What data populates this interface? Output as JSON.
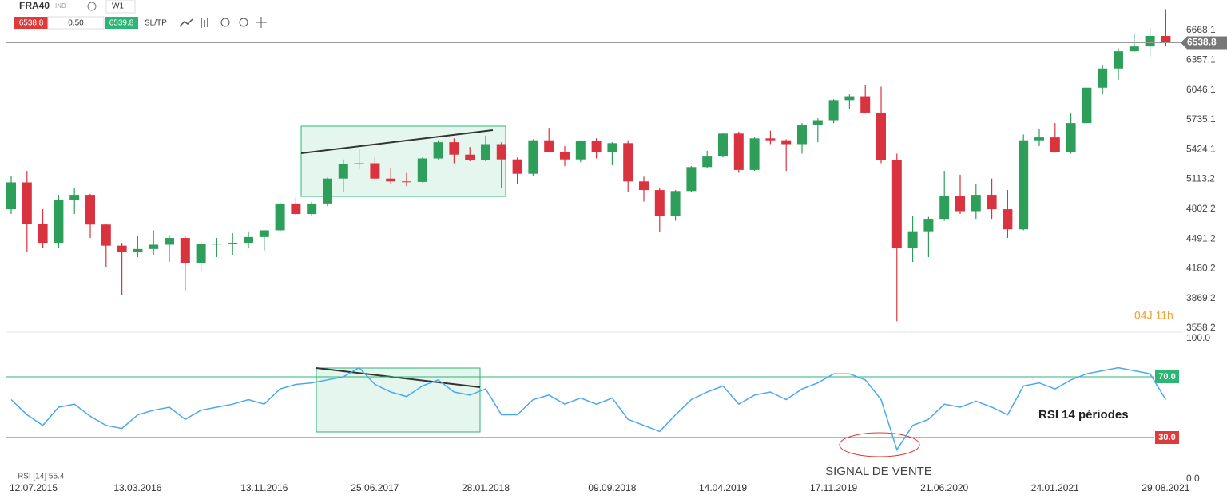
{
  "header": {
    "symbol": "FRA40",
    "kind": "IND",
    "timeframe": "W1",
    "sell": "6538.8",
    "volume": "0.50",
    "buy": "6539.8",
    "sltp": "SL/TP"
  },
  "chart_data": [
    {
      "type": "candlestick",
      "up_color": "#2e9e5b",
      "down_color": "#d9333f",
      "categories": [
        "12.07.2015",
        null,
        null,
        null,
        null,
        null,
        null,
        null,
        "13.03.2016",
        null,
        null,
        null,
        null,
        null,
        null,
        null,
        "13.11.2016",
        null,
        null,
        null,
        null,
        null,
        null,
        "25.06.2017",
        null,
        null,
        null,
        null,
        null,
        null,
        "28.01.2018",
        null,
        null,
        null,
        null,
        null,
        null,
        null,
        "09.09.2018",
        null,
        null,
        null,
        null,
        null,
        null,
        "14.04.2019",
        null,
        null,
        null,
        null,
        null,
        null,
        "17.11.2019",
        null,
        null,
        null,
        null,
        null,
        null,
        "21.06.2020",
        null,
        null,
        null,
        null,
        null,
        null,
        "24.01.2021",
        null,
        null,
        null,
        null,
        null,
        null,
        "29.08.2021"
      ],
      "open": [
        4800,
        5080,
        4650,
        4450,
        4900,
        4950,
        4640,
        4420,
        4350,
        4385,
        4430,
        4500,
        4240,
        4440,
        4440,
        4450,
        4510,
        4580,
        4860,
        4750,
        4860,
        5120,
        5270,
        5280,
        5120,
        5090,
        5085,
        5330,
        5500,
        5370,
        5310,
        5480,
        5320,
        5170,
        5520,
        5400,
        5320,
        5510,
        5400,
        5490,
        5090,
        5000,
        4730,
        4990,
        5240,
        5350,
        5590,
        5210,
        5540,
        5520,
        5480,
        5680,
        5730,
        5940,
        5980,
        5810,
        5310,
        4400,
        4570,
        4700,
        4940,
        4780,
        4950,
        4800,
        4590,
        5520,
        5550,
        5400,
        5700,
        6070,
        6270,
        6450,
        6500,
        6610
      ],
      "high": [
        5150,
        5200,
        4800,
        4950,
        5020,
        4960,
        4650,
        4450,
        4520,
        4580,
        4530,
        4520,
        4460,
        4500,
        4550,
        4570,
        4580,
        4870,
        4920,
        4880,
        5130,
        5320,
        5430,
        5340,
        5230,
        5180,
        5340,
        5520,
        5540,
        5450,
        5570,
        5500,
        5340,
        5530,
        5650,
        5460,
        5520,
        5540,
        5500,
        5520,
        5140,
        5020,
        5000,
        5250,
        5410,
        5600,
        5610,
        5550,
        5620,
        5530,
        5700,
        5750,
        5950,
        6000,
        6100,
        6080,
        5380,
        4730,
        4720,
        5200,
        5160,
        5060,
        5120,
        5000,
        5580,
        5640,
        5700,
        5800,
        6070,
        6300,
        6480,
        6640,
        6690,
        6890
      ],
      "low": [
        4750,
        4350,
        4400,
        4400,
        4750,
        4500,
        4200,
        3900,
        4300,
        4320,
        4250,
        3950,
        4150,
        4300,
        4320,
        4400,
        4370,
        4560,
        4740,
        4730,
        4830,
        4980,
        5220,
        5100,
        5060,
        5040,
        5080,
        5320,
        5280,
        5300,
        5300,
        5020,
        5060,
        5150,
        5400,
        5250,
        5290,
        5330,
        5260,
        4980,
        4880,
        4560,
        4680,
        4980,
        5230,
        5340,
        5180,
        5200,
        5480,
        5200,
        5380,
        5500,
        5700,
        5850,
        5800,
        5280,
        3630,
        4250,
        4300,
        4680,
        4750,
        4700,
        4700,
        4500,
        4580,
        5460,
        5390,
        5380,
        5700,
        6000,
        6150,
        6440,
        6380,
        6500
      ],
      "close": [
        5080,
        4650,
        4450,
        4900,
        4950,
        4640,
        4420,
        4350,
        4385,
        4430,
        4500,
        4240,
        4440,
        4440,
        4450,
        4510,
        4580,
        4860,
        4750,
        4860,
        5120,
        5270,
        5280,
        5120,
        5090,
        5085,
        5330,
        5500,
        5370,
        5310,
        5480,
        5320,
        5170,
        5520,
        5400,
        5320,
        5510,
        5400,
        5490,
        5090,
        5000,
        4730,
        4990,
        5240,
        5350,
        5590,
        5210,
        5540,
        5520,
        5480,
        5680,
        5730,
        5940,
        5980,
        5810,
        5310,
        4400,
        4570,
        4700,
        4940,
        4780,
        4950,
        4800,
        4590,
        5520,
        5550,
        5400,
        5700,
        6070,
        6270,
        6450,
        6500,
        6610,
        6538.8
      ],
      "ylim": [
        3525,
        6985
      ],
      "yticks": [
        3558.2,
        3869.2,
        4180.2,
        4491.2,
        4802.2,
        5113.2,
        5424.1,
        5735.1,
        6046.1,
        6357.1,
        6668.1
      ],
      "last_price": 6538.8,
      "annotation": "04J 11h"
    },
    {
      "type": "line",
      "legend": "RSI [14] 55.4",
      "color": "#4aa8f0",
      "values": [
        55,
        45,
        38,
        50,
        52,
        44,
        38,
        36,
        45,
        48,
        50,
        42,
        48,
        50,
        52,
        55,
        52,
        62,
        65,
        66,
        68,
        70,
        76,
        65,
        60,
        57,
        64,
        68,
        60,
        58,
        62,
        45,
        45,
        55,
        58,
        52,
        56,
        52,
        56,
        42,
        38,
        34,
        45,
        55,
        60,
        64,
        52,
        58,
        60,
        55,
        62,
        66,
        72,
        72,
        68,
        55,
        22,
        38,
        42,
        52,
        50,
        54,
        50,
        45,
        64,
        66,
        62,
        68,
        72,
        74,
        76,
        74,
        72,
        55
      ],
      "ylim": [
        0,
        100
      ],
      "yticks": [
        {
          "value": 0,
          "label": "0.0"
        },
        {
          "value": 100,
          "label": "100.0"
        }
      ],
      "levels": [
        {
          "value": 70,
          "label": "70.0",
          "color": "#2bb673"
        },
        {
          "value": 30,
          "label": "30.0",
          "color": "#e03a3a"
        }
      ],
      "annotations": [
        "RSI 14 périodes",
        "SIGNAL DE VENTE"
      ]
    }
  ]
}
